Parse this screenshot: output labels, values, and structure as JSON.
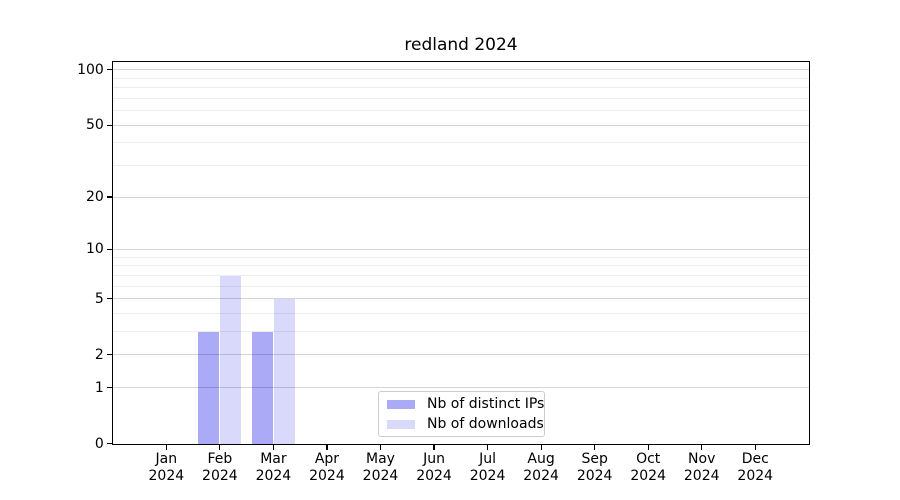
{
  "chart_data": {
    "type": "bar",
    "title": "redland 2024",
    "categories": [
      {
        "month": "Jan",
        "year": "2024"
      },
      {
        "month": "Feb",
        "year": "2024"
      },
      {
        "month": "Mar",
        "year": "2024"
      },
      {
        "month": "Apr",
        "year": "2024"
      },
      {
        "month": "May",
        "year": "2024"
      },
      {
        "month": "Jun",
        "year": "2024"
      },
      {
        "month": "Jul",
        "year": "2024"
      },
      {
        "month": "Aug",
        "year": "2024"
      },
      {
        "month": "Sep",
        "year": "2024"
      },
      {
        "month": "Oct",
        "year": "2024"
      },
      {
        "month": "Nov",
        "year": "2024"
      },
      {
        "month": "Dec",
        "year": "2024"
      }
    ],
    "series": [
      {
        "name": "Nb of distinct IPs",
        "color": "#aaaaf6",
        "values": [
          0,
          3,
          3,
          0,
          0,
          0,
          0,
          0,
          0,
          0,
          0,
          0
        ]
      },
      {
        "name": "Nb of downloads",
        "color": "#d9d9fb",
        "values": [
          0,
          7,
          5,
          0,
          0,
          0,
          0,
          0,
          0,
          0,
          0,
          0
        ]
      }
    ],
    "xlabel": "",
    "ylabel": "",
    "y_scale": "log1p",
    "y_ticks": [
      0,
      1,
      2,
      5,
      10,
      20,
      50,
      100
    ],
    "y_minor_gridlines": [
      3,
      4,
      6,
      7,
      8,
      9,
      30,
      40,
      60,
      70,
      80,
      90
    ],
    "ylim": [
      0,
      110
    ],
    "grid": "horizontal",
    "legend_position": "lower center, inside axes"
  },
  "colors": {
    "background": "#ffffff",
    "spine": "#000000",
    "major_grid": "#d9d9d9",
    "minor_grid": "#ececec",
    "legend_border": "#cccccc"
  }
}
